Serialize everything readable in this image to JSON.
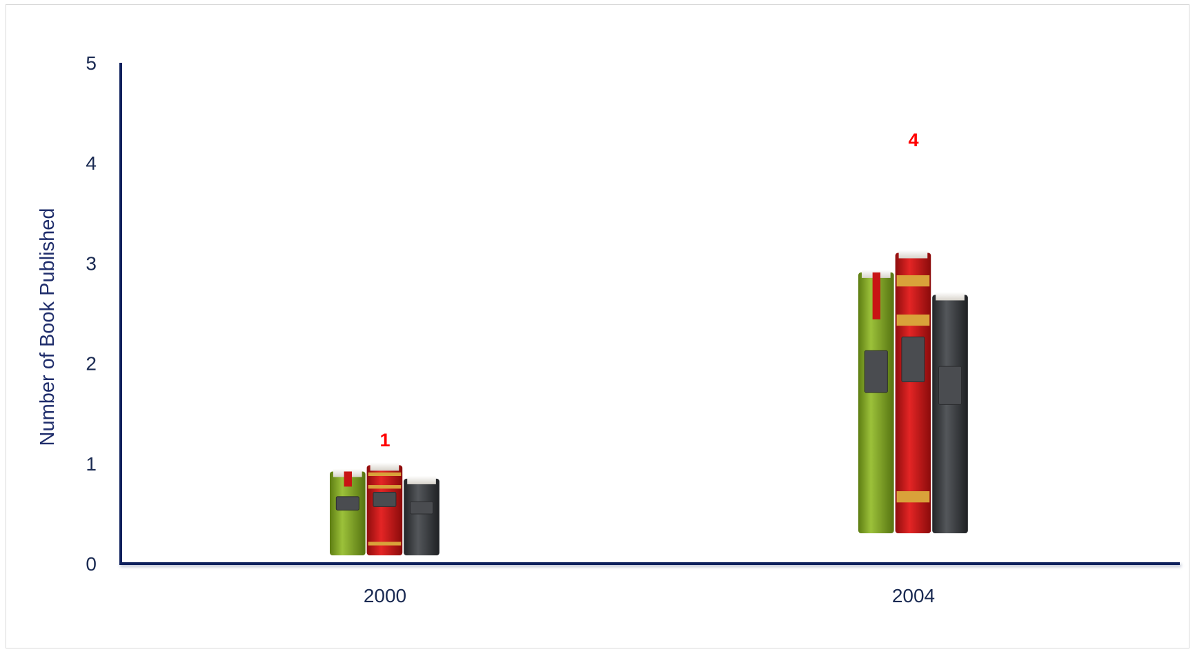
{
  "chart_data": {
    "type": "bar",
    "title": "",
    "xlabel": "",
    "ylabel": "Number of Book Published",
    "categories": [
      "2000",
      "2004"
    ],
    "values": [
      1,
      4
    ],
    "data_labels": [
      "1",
      "4"
    ],
    "ylim": [
      0,
      5
    ],
    "yticks": [
      "0",
      "1",
      "2",
      "3",
      "4",
      "5"
    ],
    "grid": false,
    "legend": "none",
    "colors": {
      "axis": "#0d1f5c",
      "tick_text": "#1a2a52",
      "data_label": "#ff0000",
      "book_green": "#7fa51e",
      "book_red": "#d11a1a",
      "book_dark": "#3b3d40",
      "gold_band": "#d9a23a"
    },
    "mark_icon": "book-stack-icon"
  }
}
